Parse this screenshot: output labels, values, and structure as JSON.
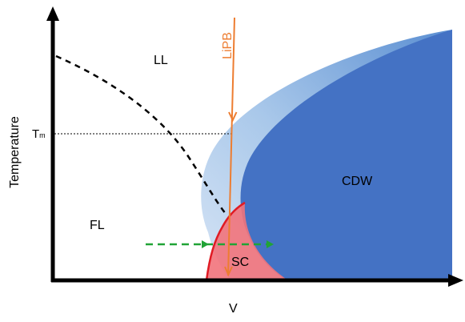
{
  "axes": {
    "x_label": "V",
    "y_label": "Temperature",
    "tm_label": "T",
    "tm_subscript": "m"
  },
  "regions": {
    "ll": "LL",
    "fl": "FL",
    "cdw": "CDW",
    "sc": "SC"
  },
  "probe": {
    "label": "LiPB"
  },
  "colors": {
    "axis": "#000000",
    "cdw_outer": "#9dc3e6",
    "cdw_inner": "#4472c4",
    "sc_fill": "#f4757b",
    "sc_edge": "#e01b24",
    "probe": "#ed7d31",
    "crossover": "#000000",
    "tm_line": "#000000",
    "green_arrow": "#21a336"
  }
}
